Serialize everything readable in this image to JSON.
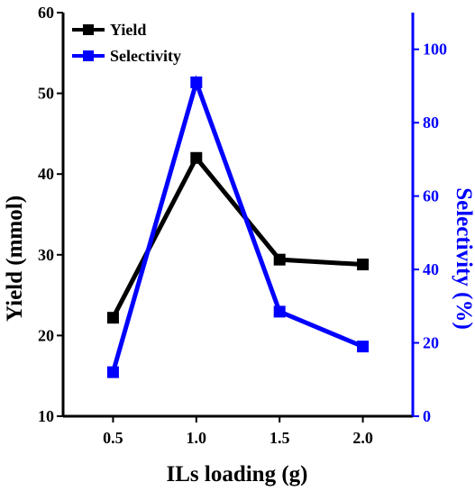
{
  "chart_data": {
    "type": "line",
    "x": [
      0.5,
      1.0,
      1.5,
      2.0
    ],
    "x_tick_labels": [
      "0.5",
      "1.0",
      "1.5",
      "2.0"
    ],
    "xlabel": "ILs loading (g)",
    "ylabel": "Yield (mmol)",
    "y2label": "Selectivity (%)",
    "xlim": [
      0.2,
      2.3
    ],
    "ylim": [
      10,
      60
    ],
    "y2lim": [
      0,
      110
    ],
    "y_ticks": [
      10,
      20,
      30,
      40,
      50,
      60
    ],
    "y2_ticks": [
      0,
      20,
      40,
      60,
      80,
      100
    ],
    "grid": false,
    "legend_position": "top-left",
    "series": [
      {
        "name": "Yield",
        "axis": "left",
        "color": "#000000",
        "marker": "square",
        "values": [
          22.2,
          42.0,
          29.4,
          28.8
        ]
      },
      {
        "name": "Selectivity",
        "axis": "right",
        "color": "#0000ff",
        "marker": "square",
        "values": [
          12.0,
          91.0,
          28.5,
          19.0
        ]
      }
    ],
    "axis_colors": {
      "left": "#000000",
      "right": "#0000ff"
    }
  }
}
